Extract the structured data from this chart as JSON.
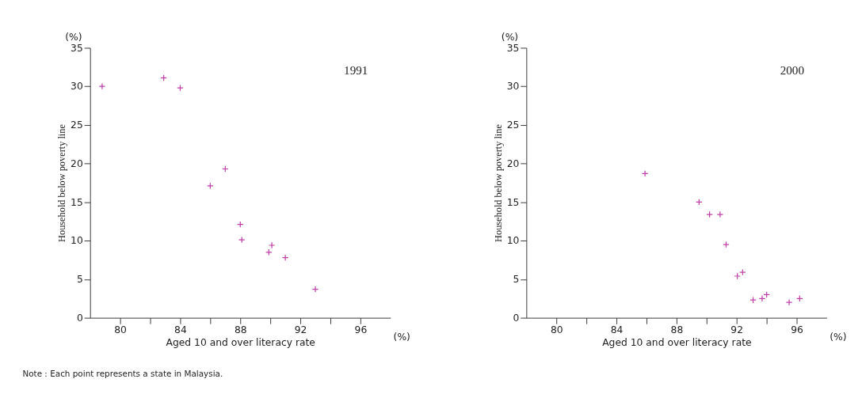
{
  "chart_data": [
    {
      "type": "scatter",
      "title": "1991",
      "xlabel": "Aged 10 and over literacy rate",
      "ylabel": "Household below poverty line",
      "annotations": [
        "(%)",
        "(%)",
        "Note : Each point represents a state in Malaysia."
      ],
      "x": [
        78.8,
        82.9,
        84.0,
        86.0,
        87.0,
        88.0,
        88.1,
        89.9,
        90.1,
        91.0,
        93.0
      ],
      "series": [
        {
          "color": "#c040a8",
          "values": [
            30.0,
            31.1,
            29.8,
            17.1,
            19.3,
            12.1,
            10.1,
            8.5,
            9.4,
            7.8,
            3.7
          ]
        }
      ],
      "xlim": [
        78,
        98
      ],
      "xticks": [
        80,
        {
          "value": 82,
          "label": null
        },
        84,
        {
          "value": 86,
          "label": null
        },
        88,
        {
          "value": 90,
          "label": null
        },
        92,
        {
          "value": 94,
          "label": null
        },
        96
      ],
      "ylim": [
        0,
        35
      ],
      "yticks": [
        0,
        5,
        10,
        15,
        20,
        25,
        30,
        35
      ],
      "grid": false,
      "marker": "cross"
    },
    {
      "type": "scatter",
      "title": "2000",
      "xlabel": "Aged 10 and over literacy rate",
      "ylabel": "Household below poverty line",
      "annotations": [
        "(%)",
        "(%)"
      ],
      "x": [
        85.9,
        89.5,
        90.2,
        90.9,
        91.3,
        92.05,
        92.4,
        93.1,
        93.7,
        94.0,
        95.5,
        96.2
      ],
      "series": [
        {
          "color": "#c040a8",
          "values": [
            18.7,
            15.0,
            13.4,
            13.4,
            9.5,
            5.4,
            5.9,
            2.3,
            2.5,
            3.0,
            2.0,
            2.5
          ]
        }
      ],
      "xlim": [
        78,
        98
      ],
      "xticks": [
        80,
        {
          "value": 82,
          "label": null
        },
        84,
        {
          "value": 86,
          "label": null
        },
        88,
        {
          "value": 90,
          "label": null
        },
        92,
        {
          "value": 94,
          "label": null
        },
        96
      ],
      "ylim": [
        0,
        35
      ],
      "yticks": [
        0,
        5,
        10,
        15,
        20,
        25,
        30,
        35
      ],
      "grid": false,
      "marker": "cross"
    }
  ]
}
